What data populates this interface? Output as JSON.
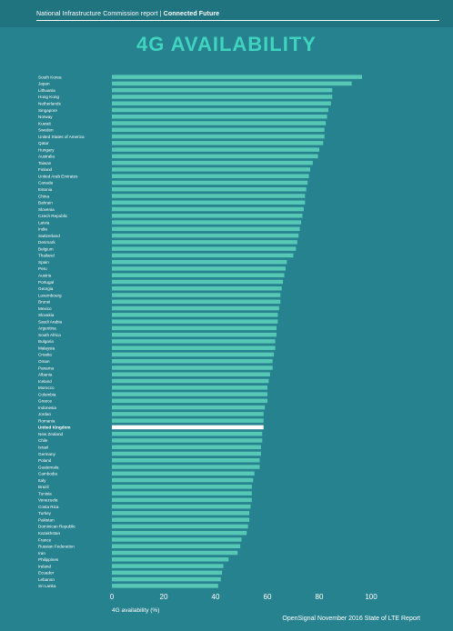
{
  "header": {
    "report": "National Infrastructure Commission report",
    "section": "Connected Future"
  },
  "colors": {
    "background": "#27828f",
    "header_bar": "#1f7480",
    "title": "#40d3c0",
    "bar": "#57c8b5",
    "highlight_bar": "#ffffff"
  },
  "source": "OpenSignal November 2016 State of LTE Report",
  "chart_data": {
    "type": "bar",
    "orientation": "horizontal",
    "title": "4G AVAILABILITY",
    "xlabel": "4G availability (%)",
    "xlim": [
      0,
      100
    ],
    "xticks": [
      "0",
      "20",
      "40",
      "60",
      "80",
      "100"
    ],
    "highlight": "United Kingdom",
    "grid": false,
    "categories": [
      "South Korea",
      "Japan",
      "Lithuania",
      "Hong Kong",
      "Netherlands",
      "Singapore",
      "Norway",
      "Kuwait",
      "Sweden",
      "United States of America",
      "Qatar",
      "Hungary",
      "Australia",
      "Taiwan",
      "Finland",
      "United Arab Emirates",
      "Canada",
      "Estonia",
      "China",
      "Bahrain",
      "Slovenia",
      "Czech Republic",
      "Latvia",
      "India",
      "Switzerland",
      "Denmark",
      "Belgium",
      "Thailand",
      "Spain",
      "Peru",
      "Austria",
      "Portugal",
      "Georgia",
      "Luxembourg",
      "Brunei",
      "Mexico",
      "Slovakia",
      "Saudi Arabia",
      "Argentina",
      "South Africa",
      "Bulgaria",
      "Malaysia",
      "Croatia",
      "Oman",
      "Panama",
      "Albania",
      "Iceland",
      "Morocco",
      "Colombia",
      "Greece",
      "Indonesia",
      "Jordan",
      "Romania",
      "United Kingdom",
      "New Zealand",
      "Chile",
      "Israel",
      "Germany",
      "Poland",
      "Guatemala",
      "Cambodia",
      "Italy",
      "Brazil",
      "Tunisia",
      "Venezuela",
      "Costa Rica",
      "Turkey",
      "Pakistan",
      "Dominican Republic",
      "Kazakhstan",
      "France",
      "Russian Federation",
      "Iran",
      "Philippines",
      "Ireland",
      "Ecuador",
      "Lebanon",
      "Sri Lanka"
    ],
    "values": [
      96.5,
      92.5,
      85,
      85,
      84.5,
      83.5,
      83,
      82.5,
      82,
      82,
      81.5,
      80,
      79.5,
      77.5,
      76.5,
      76,
      75.5,
      75,
      74.5,
      74.5,
      74,
      73.5,
      73,
      72.5,
      72,
      71.5,
      71,
      70,
      67.5,
      67,
      66.5,
      66,
      65.5,
      65,
      65,
      64.5,
      64,
      64,
      63.5,
      63.5,
      63,
      63,
      62.5,
      62,
      62,
      61,
      60.5,
      60,
      60,
      60,
      59,
      58.5,
      58.5,
      58.5,
      58,
      58,
      57.5,
      57.5,
      57,
      57,
      55,
      54.5,
      54,
      54,
      54,
      53.5,
      53,
      53,
      52.5,
      52,
      50,
      49.5,
      48.5,
      45,
      43,
      42.5,
      42,
      41
    ]
  }
}
